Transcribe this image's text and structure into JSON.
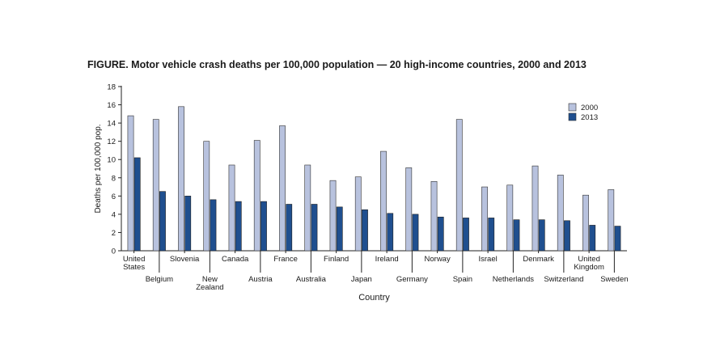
{
  "figure": {
    "label": "FIGURE",
    "title": ". Motor vehicle crash deaths per 100,000 population — 20 high-income countries, 2000 and 2013"
  },
  "chart_data": {
    "type": "bar",
    "xlabel": "Country",
    "ylabel": "Deaths per 100,000 pop.",
    "ylim": [
      0,
      18
    ],
    "yticks": [
      0,
      2,
      4,
      6,
      8,
      10,
      12,
      14,
      16,
      18
    ],
    "grid": false,
    "legend_position": "top-right",
    "categories": [
      [
        "United",
        "States"
      ],
      [
        "Belgium"
      ],
      [
        "Slovenia"
      ],
      [
        "New",
        "Zealand"
      ],
      [
        "Canada"
      ],
      [
        "Austria"
      ],
      [
        "France"
      ],
      [
        "Australia"
      ],
      [
        "Finland"
      ],
      [
        "Japan"
      ],
      [
        "Ireland"
      ],
      [
        "Germany"
      ],
      [
        "Norway"
      ],
      [
        "Spain"
      ],
      [
        "Israel"
      ],
      [
        "Netherlands"
      ],
      [
        "Denmark"
      ],
      [
        "Switzerland"
      ],
      [
        "United",
        "Kingdom"
      ],
      [
        "Sweden"
      ]
    ],
    "series": [
      {
        "name": "2000",
        "color": "#b8c2de",
        "values": [
          14.8,
          14.4,
          15.8,
          12.0,
          9.4,
          12.1,
          13.7,
          9.4,
          7.7,
          8.1,
          10.9,
          9.1,
          7.6,
          14.4,
          7.0,
          7.2,
          9.3,
          8.3,
          6.1,
          6.7
        ]
      },
      {
        "name": "2013",
        "color": "#1f4f8f",
        "values": [
          10.2,
          6.5,
          6.0,
          5.6,
          5.4,
          5.4,
          5.1,
          5.1,
          4.8,
          4.5,
          4.1,
          4.0,
          3.7,
          3.6,
          3.6,
          3.4,
          3.4,
          3.3,
          2.8,
          2.7
        ]
      }
    ]
  }
}
